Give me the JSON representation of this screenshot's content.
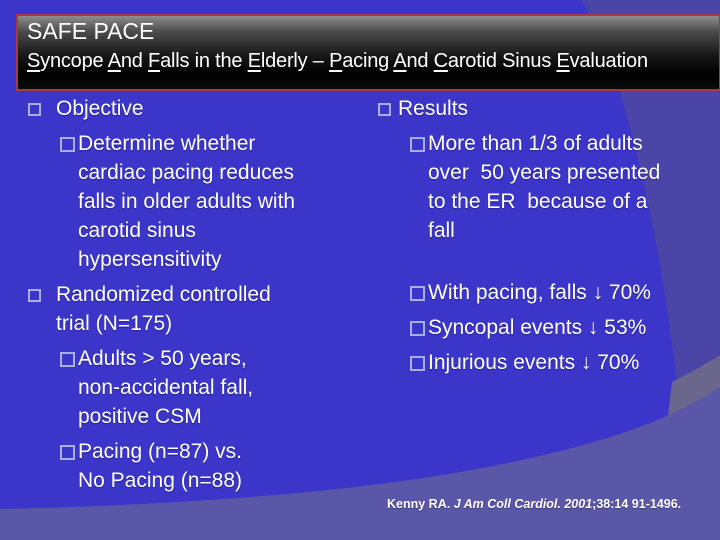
{
  "slide": {
    "colors": {
      "base_blue": "#3B35C9",
      "right_band": "#4A45A6",
      "bottom_band": "#5B57A8",
      "corner_gray": "#6B678C",
      "header_border": "#A83944",
      "bullet_outline": "#A5B2E0",
      "text": "#FFFFFF"
    },
    "header": {
      "title": "SAFE PACE",
      "subtitle_segments": [
        {
          "t": "S",
          "u": true
        },
        {
          "t": "yncope ",
          "u": false
        },
        {
          "t": "A",
          "u": true
        },
        {
          "t": "nd ",
          "u": false
        },
        {
          "t": "F",
          "u": true
        },
        {
          "t": "alls in the ",
          "u": false
        },
        {
          "t": "E",
          "u": true
        },
        {
          "t": "lderly – ",
          "u": false
        },
        {
          "t": "P",
          "u": true
        },
        {
          "t": "acing ",
          "u": false
        },
        {
          "t": "A",
          "u": true
        },
        {
          "t": "nd ",
          "u": false
        },
        {
          "t": "C",
          "u": true
        },
        {
          "t": "arotid Sinus ",
          "u": false
        },
        {
          "t": "E",
          "u": true
        },
        {
          "t": "valuation",
          "u": false
        }
      ]
    },
    "columns": {
      "left": {
        "items": [
          {
            "level": 1,
            "lines": [
              "Objective"
            ]
          },
          {
            "level": 2,
            "lines": [
              "Determine whether",
              "cardiac pacing reduces",
              "falls in older adults with",
              "carotid sinus",
              "hypersensitivity"
            ]
          },
          {
            "level": 1,
            "lines": [
              "Randomized controlled",
              "trial (N=175)"
            ]
          },
          {
            "level": 2,
            "lines": [
              "Adults > 50 years,",
              "non-accidental fall,",
              "positive CSM"
            ]
          },
          {
            "level": 2,
            "lines": [
              "Pacing (n=87) vs.",
              "No Pacing (n=88)"
            ]
          }
        ]
      },
      "right": {
        "items": [
          {
            "level": 1,
            "lines": [
              "Results"
            ]
          },
          {
            "level": 2,
            "lines": [
              "More than 1/3 of adults",
              "over  50 years presented",
              "to the ER  because of a",
              "fall"
            ]
          },
          {
            "level": 2,
            "lines": [
              "With pacing, falls ↓ 70%"
            ]
          },
          {
            "level": 2,
            "lines": [
              "Syncopal events ↓ 53%"
            ]
          },
          {
            "level": 2,
            "lines": [
              "Injurious events ↓ 70%"
            ]
          }
        ]
      }
    },
    "citation": {
      "segments": [
        {
          "text": "Kenny RA. ",
          "italic": false
        },
        {
          "text": "J Am Coll Cardiol. 2001",
          "italic": true
        },
        {
          "text": ";38:14 91-1496.",
          "italic": false
        }
      ]
    }
  }
}
